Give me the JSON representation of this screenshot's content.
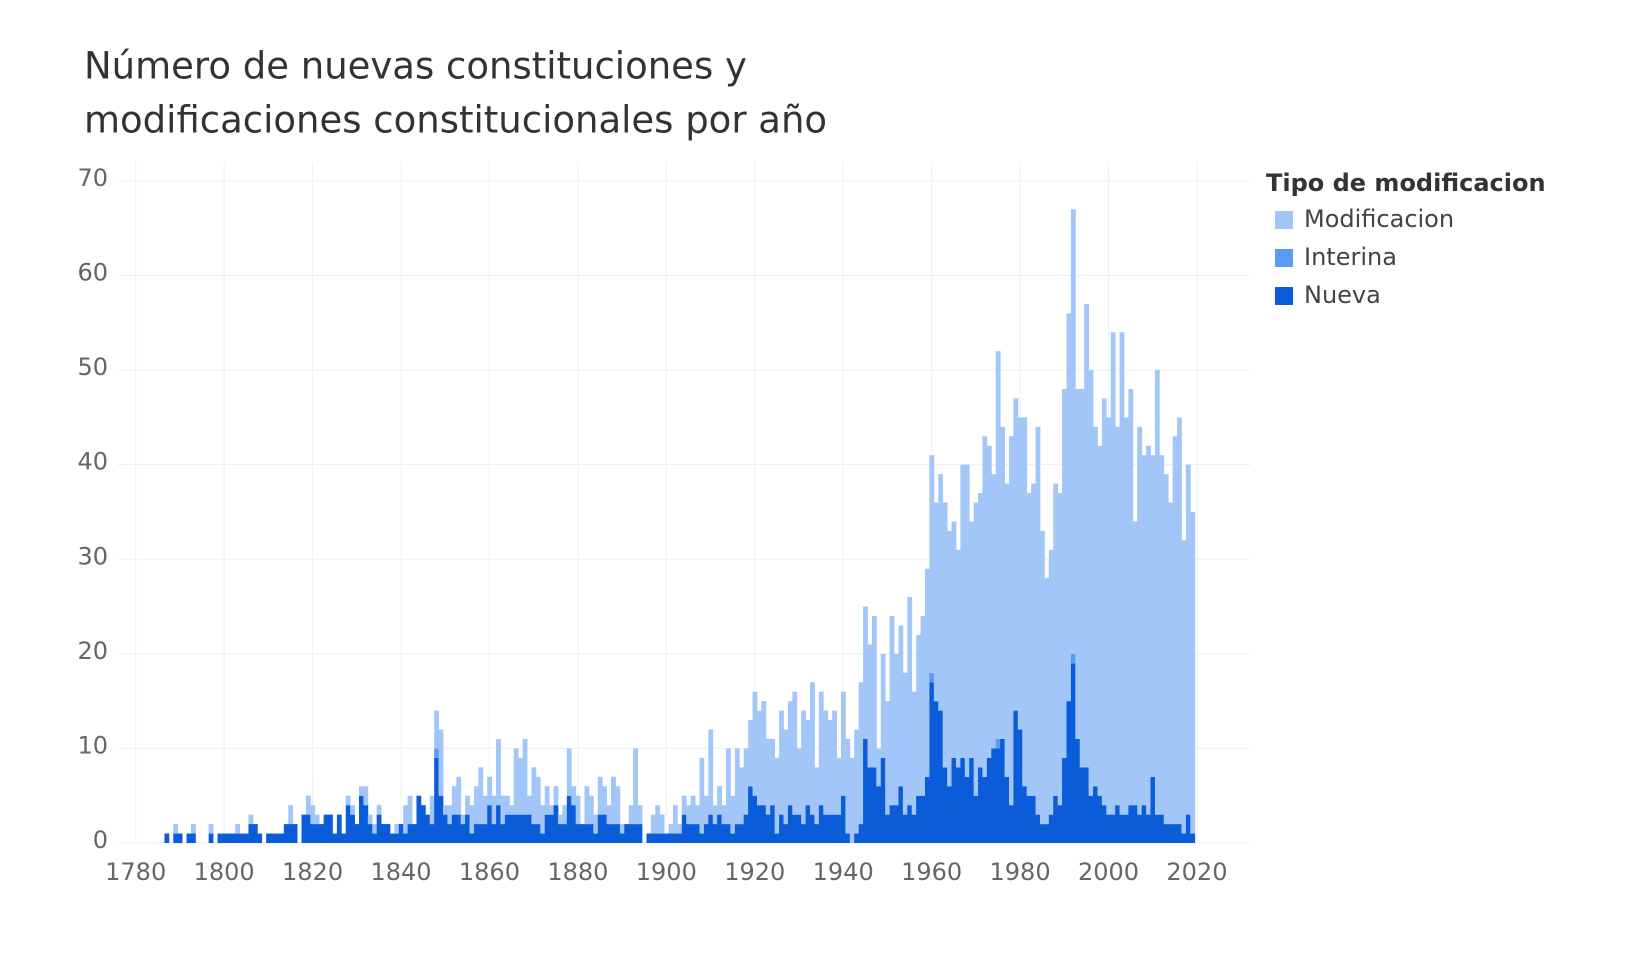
{
  "chart_data": {
    "type": "stacked-histogram",
    "title": [
      "Número de nuevas constituciones y",
      "modificaciones constitucionales por año"
    ],
    "legend_title": "Tipo de modificacion",
    "legend": "right",
    "grid": true,
    "xlim": [
      1776,
      2032
    ],
    "xticks": [
      1780,
      1800,
      1820,
      1840,
      1860,
      1880,
      1900,
      1920,
      1940,
      1960,
      1980,
      2000,
      2020
    ],
    "ylim": [
      0,
      72
    ],
    "yticks": [
      0,
      10,
      20,
      30,
      40,
      50,
      60,
      70
    ],
    "x": [
      1787,
      1788,
      1789,
      1790,
      1791,
      1792,
      1793,
      1794,
      1795,
      1796,
      1797,
      1798,
      1799,
      1800,
      1801,
      1802,
      1803,
      1804,
      1805,
      1806,
      1807,
      1808,
      1809,
      1810,
      1811,
      1812,
      1813,
      1814,
      1815,
      1816,
      1817,
      1818,
      1819,
      1820,
      1821,
      1822,
      1823,
      1824,
      1825,
      1826,
      1827,
      1828,
      1829,
      1830,
      1831,
      1832,
      1833,
      1834,
      1835,
      1836,
      1837,
      1838,
      1839,
      1840,
      1841,
      1842,
      1843,
      1844,
      1845,
      1846,
      1847,
      1848,
      1849,
      1850,
      1851,
      1852,
      1853,
      1854,
      1855,
      1856,
      1857,
      1858,
      1859,
      1860,
      1861,
      1862,
      1863,
      1864,
      1865,
      1866,
      1867,
      1868,
      1869,
      1870,
      1871,
      1872,
      1873,
      1874,
      1875,
      1876,
      1877,
      1878,
      1879,
      1880,
      1881,
      1882,
      1883,
      1884,
      1885,
      1886,
      1887,
      1888,
      1889,
      1890,
      1891,
      1892,
      1893,
      1894,
      1895,
      1896,
      1897,
      1898,
      1899,
      1900,
      1901,
      1902,
      1903,
      1904,
      1905,
      1906,
      1907,
      1908,
      1909,
      1910,
      1911,
      1912,
      1913,
      1914,
      1915,
      1916,
      1917,
      1918,
      1919,
      1920,
      1921,
      1922,
      1923,
      1924,
      1925,
      1926,
      1927,
      1928,
      1929,
      1930,
      1931,
      1932,
      1933,
      1934,
      1935,
      1936,
      1937,
      1938,
      1939,
      1940,
      1941,
      1942,
      1943,
      1944,
      1945,
      1946,
      1947,
      1948,
      1949,
      1950,
      1951,
      1952,
      1953,
      1954,
      1955,
      1956,
      1957,
      1958,
      1959,
      1960,
      1961,
      1962,
      1963,
      1964,
      1965,
      1966,
      1967,
      1968,
      1969,
      1970,
      1971,
      1972,
      1973,
      1974,
      1975,
      1976,
      1977,
      1978,
      1979,
      1980,
      1981,
      1982,
      1983,
      1984,
      1985,
      1986,
      1987,
      1988,
      1989,
      1990,
      1991,
      1992,
      1993,
      1994,
      1995,
      1996,
      1997,
      1998,
      1999,
      2000,
      2001,
      2002,
      2003,
      2004,
      2005,
      2006,
      2007,
      2008,
      2009,
      2010,
      2011,
      2012,
      2013,
      2014,
      2015,
      2016,
      2017,
      2018,
      2019
    ],
    "series": [
      {
        "name": "Modificacion",
        "color": "#a3c6f9",
        "values": [
          0,
          0,
          1,
          0,
          0,
          0,
          1,
          0,
          0,
          0,
          1,
          0,
          0,
          0,
          0,
          0,
          1,
          0,
          0,
          1,
          0,
          0,
          0,
          0,
          0,
          0,
          0,
          0,
          2,
          0,
          0,
          0,
          2,
          2,
          1,
          0,
          0,
          0,
          0,
          0,
          0,
          1,
          1,
          0,
          1,
          2,
          1,
          1,
          1,
          0,
          0,
          0,
          1,
          0,
          3,
          3,
          0,
          0,
          0,
          0,
          3,
          4,
          7,
          1,
          2,
          3,
          4,
          1,
          2,
          3,
          4,
          6,
          3,
          3,
          3,
          7,
          3,
          2,
          1,
          7,
          6,
          8,
          2,
          6,
          5,
          3,
          3,
          1,
          2,
          1,
          2,
          5,
          2,
          3,
          0,
          4,
          3,
          2,
          4,
          3,
          2,
          5,
          4,
          1,
          0,
          2,
          8,
          2,
          0,
          0,
          2,
          3,
          2,
          0,
          1,
          3,
          1,
          2,
          2,
          3,
          2,
          8,
          3,
          9,
          2,
          3,
          2,
          8,
          4,
          8,
          6,
          7,
          7,
          11,
          10,
          11,
          8,
          7,
          8,
          11,
          10,
          11,
          13,
          7,
          12,
          9,
          14,
          6,
          12,
          11,
          10,
          11,
          6,
          11,
          10,
          9,
          11,
          15,
          14,
          13,
          16,
          4,
          11,
          12,
          20,
          16,
          17,
          15,
          22,
          13,
          17,
          19,
          22,
          23,
          21,
          25,
          28,
          27,
          25,
          23,
          31,
          33,
          25,
          31,
          29,
          36,
          33,
          29,
          41,
          33,
          31,
          39,
          33,
          33,
          39,
          32,
          33,
          41,
          31,
          26,
          28,
          33,
          33,
          39,
          41,
          47,
          37,
          40,
          49,
          45,
          38,
          37,
          43,
          42,
          51,
          40,
          51,
          42,
          44,
          30,
          41,
          37,
          39,
          34,
          47,
          38,
          37,
          34,
          41,
          43,
          31,
          37,
          34
        ]
      },
      {
        "name": "Interina",
        "color": "#5b9bf1",
        "values": [
          0,
          0,
          0,
          0,
          0,
          0,
          0,
          0,
          0,
          0,
          0,
          0,
          0,
          0,
          0,
          0,
          0,
          0,
          0,
          0,
          0,
          0,
          0,
          0,
          0,
          0,
          0,
          0,
          0,
          0,
          0,
          0,
          0,
          0,
          0,
          0,
          0,
          0,
          0,
          0,
          0,
          0,
          0,
          0,
          0,
          0,
          0,
          0,
          0,
          0,
          0,
          0,
          0,
          0,
          0,
          0,
          0,
          0,
          0,
          0,
          0,
          1,
          0,
          0,
          0,
          0,
          0,
          0,
          0,
          0,
          0,
          0,
          0,
          0,
          0,
          0,
          0,
          0,
          0,
          0,
          0,
          0,
          0,
          0,
          0,
          0,
          0,
          0,
          0,
          0,
          0,
          0,
          0,
          0,
          0,
          0,
          0,
          0,
          0,
          0,
          0,
          0,
          0,
          0,
          0,
          0,
          0,
          0,
          0,
          0,
          0,
          0,
          0,
          0,
          0,
          0,
          0,
          0,
          0,
          0,
          0,
          0,
          0,
          0,
          0,
          0,
          0,
          0,
          0,
          0,
          0,
          0,
          0,
          0,
          0,
          0,
          0,
          0,
          0,
          0,
          0,
          0,
          0,
          0,
          0,
          0,
          0,
          0,
          0,
          0,
          0,
          0,
          0,
          0,
          0,
          0,
          0,
          0,
          0,
          0,
          0,
          0,
          0,
          0,
          0,
          0,
          0,
          0,
          0,
          0,
          0,
          0,
          0,
          1,
          0,
          0,
          0,
          0,
          0,
          0,
          0,
          0,
          0,
          0,
          0,
          0,
          0,
          0,
          1,
          0,
          0,
          0,
          0,
          0,
          0,
          0,
          0,
          0,
          0,
          0,
          0,
          0,
          0,
          0,
          0,
          1,
          0,
          0,
          0,
          0,
          0,
          0,
          0,
          0,
          0,
          0,
          0,
          0,
          0,
          0,
          0,
          0,
          0,
          0,
          0,
          0,
          0,
          0,
          0,
          0,
          0,
          0,
          0
        ]
      },
      {
        "name": "Nueva",
        "color": "#0b5cd8",
        "values": [
          1,
          0,
          1,
          1,
          0,
          1,
          1,
          0,
          0,
          0,
          1,
          0,
          1,
          1,
          1,
          1,
          1,
          1,
          1,
          2,
          2,
          1,
          0,
          1,
          1,
          1,
          1,
          2,
          2,
          2,
          0,
          3,
          3,
          2,
          2,
          2,
          3,
          3,
          1,
          3,
          1,
          4,
          3,
          2,
          5,
          4,
          2,
          1,
          3,
          2,
          2,
          1,
          1,
          2,
          1,
          2,
          2,
          5,
          4,
          3,
          2,
          9,
          5,
          3,
          2,
          3,
          3,
          2,
          3,
          1,
          2,
          2,
          2,
          4,
          2,
          4,
          2,
          3,
          3,
          3,
          3,
          3,
          3,
          2,
          2,
          1,
          3,
          3,
          4,
          2,
          2,
          5,
          4,
          2,
          2,
          2,
          2,
          1,
          3,
          3,
          2,
          2,
          2,
          1,
          2,
          2,
          2,
          2,
          0,
          1,
          1,
          1,
          1,
          1,
          1,
          1,
          1,
          3,
          2,
          2,
          2,
          1,
          2,
          3,
          2,
          3,
          2,
          2,
          1,
          2,
          2,
          3,
          6,
          5,
          4,
          4,
          3,
          4,
          1,
          3,
          2,
          4,
          3,
          3,
          2,
          4,
          3,
          2,
          4,
          3,
          3,
          3,
          3,
          5,
          1,
          0,
          1,
          2,
          11,
          8,
          8,
          6,
          9,
          3,
          4,
          4,
          6,
          3,
          4,
          3,
          5,
          5,
          7,
          17,
          15,
          14,
          8,
          6,
          9,
          8,
          9,
          7,
          9,
          5,
          8,
          7,
          9,
          10,
          10,
          11,
          7,
          4,
          14,
          12,
          6,
          5,
          5,
          3,
          2,
          2,
          3,
          5,
          4,
          9,
          15,
          19,
          11,
          8,
          8,
          5,
          6,
          5,
          4,
          3,
          3,
          4,
          3,
          3,
          4,
          4,
          3,
          4,
          3,
          7,
          3,
          3,
          2,
          2,
          2,
          2,
          1,
          3,
          1
        ]
      }
    ]
  }
}
